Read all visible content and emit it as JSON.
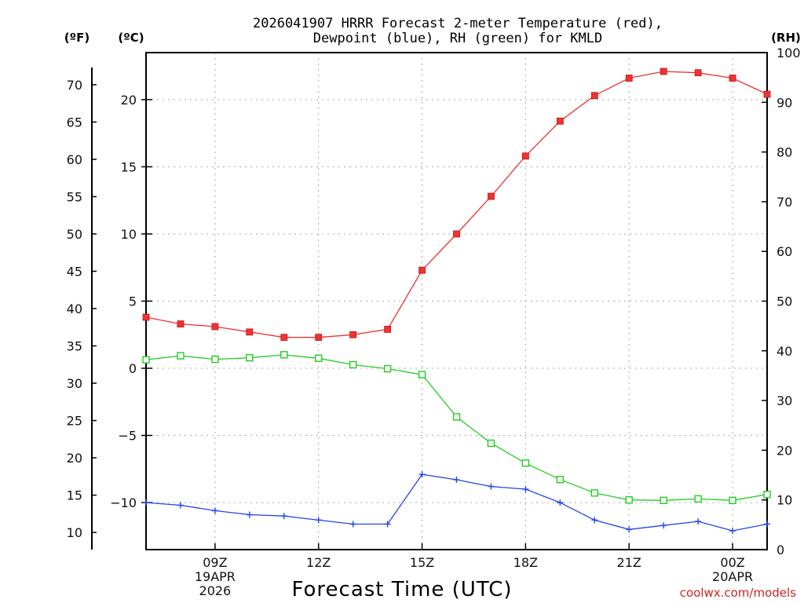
{
  "chart_data": {
    "type": "line",
    "title_line1": "2026041907 HRRR Forecast 2-meter Temperature (red),",
    "title_line2": "Dewpoint (blue), RH (green) for KMLD",
    "xlabel": "Forecast Time (UTC)",
    "credit": "coolwx.com/models",
    "units": {
      "left_outer": "(ºF)",
      "left_inner": "(ºC)",
      "right": "(RH)"
    },
    "x_hours_from_07Z": [
      0,
      1,
      2,
      3,
      4,
      5,
      6,
      7,
      8,
      9,
      10,
      11,
      12,
      13,
      14,
      15,
      16,
      17,
      18
    ],
    "x_ticks": [
      {
        "hour": 2,
        "lines": [
          "09Z",
          "19APR",
          "2026"
        ]
      },
      {
        "hour": 5,
        "lines": [
          "12Z"
        ]
      },
      {
        "hour": 8,
        "lines": [
          "15Z"
        ]
      },
      {
        "hour": 11,
        "lines": [
          "18Z"
        ]
      },
      {
        "hour": 14,
        "lines": [
          "21Z"
        ]
      },
      {
        "hour": 17,
        "lines": [
          "00Z",
          "20APR"
        ]
      }
    ],
    "xlim": [
      0,
      18
    ],
    "celsius_axis": {
      "ylim": [
        -13.5,
        23.5
      ],
      "ticks": [
        -10,
        -5,
        0,
        5,
        10,
        15,
        20
      ],
      "labels": [
        "−10",
        "−5",
        "0",
        "5",
        "10",
        "15",
        "20"
      ]
    },
    "fahrenheit_axis": {
      "ticks": [
        10,
        15,
        20,
        25,
        30,
        35,
        40,
        45,
        50,
        55,
        60,
        65,
        70
      ],
      "labels": [
        "10",
        "15",
        "20",
        "25",
        "30",
        "35",
        "40",
        "45",
        "50",
        "55",
        "60",
        "65",
        "70"
      ]
    },
    "rh_axis": {
      "ylim": [
        0,
        100
      ],
      "ticks": [
        0,
        10,
        20,
        30,
        40,
        50,
        60,
        70,
        80,
        90,
        100
      ],
      "labels": [
        "0",
        "10",
        "20",
        "30",
        "40",
        "50",
        "60",
        "70",
        "80",
        "90",
        "100"
      ]
    },
    "series": [
      {
        "name": "2-meter Temperature",
        "color": "#ee3333",
        "marker": "filled-square",
        "axis": "celsius",
        "values": [
          3.8,
          3.3,
          3.1,
          2.7,
          2.3,
          2.3,
          2.5,
          2.9,
          7.3,
          10.0,
          12.8,
          15.8,
          18.4,
          20.3,
          21.6,
          22.1,
          22.0,
          21.6,
          20.4
        ]
      },
      {
        "name": "Dewpoint",
        "color": "#2244ee",
        "marker": "plus",
        "axis": "celsius",
        "values": [
          -10.0,
          -10.2,
          -10.6,
          -10.9,
          -11.0,
          -11.3,
          -11.6,
          -11.6,
          -7.9,
          -8.3,
          -8.8,
          -9.0,
          -10.0,
          -11.3,
          -12.0,
          -11.7,
          -11.4,
          -12.1,
          -11.6
        ]
      },
      {
        "name": "RH",
        "color": "#22cc22",
        "marker": "open-square",
        "axis": "rh",
        "values": [
          38.2,
          39.0,
          38.3,
          38.6,
          39.2,
          38.5,
          37.2,
          36.4,
          35.2,
          26.7,
          21.4,
          17.4,
          14.1,
          11.4,
          10.0,
          9.9,
          10.2,
          9.9,
          11.1
        ]
      }
    ]
  }
}
